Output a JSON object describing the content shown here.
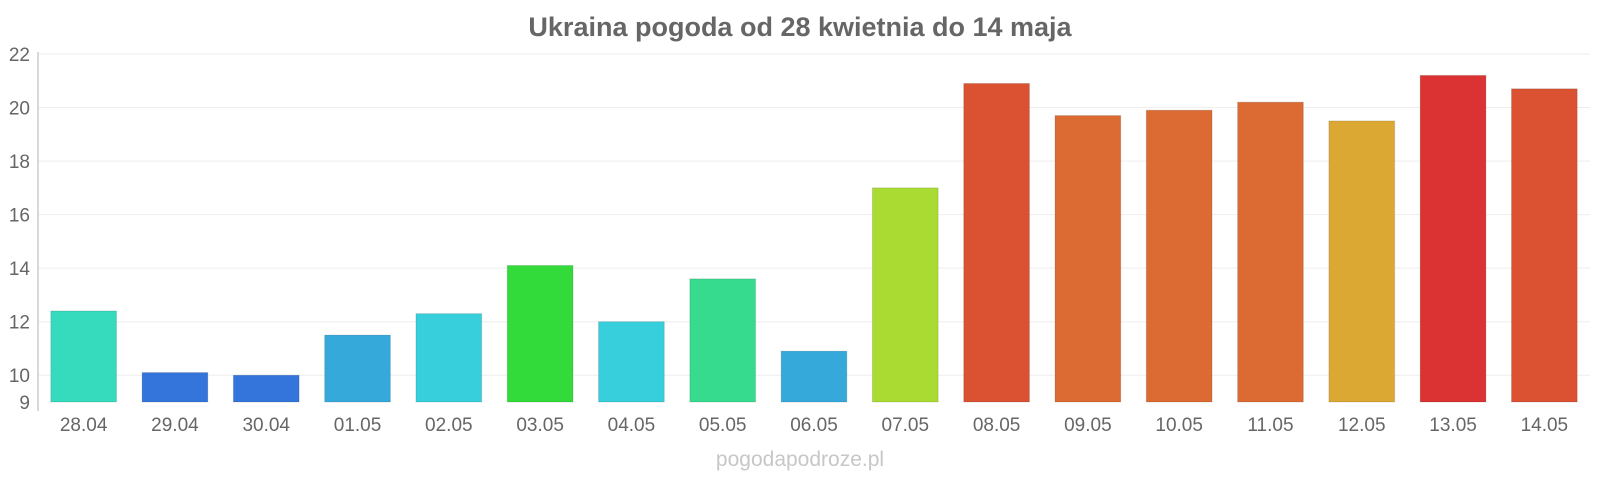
{
  "chart_data": {
    "type": "bar",
    "title": "Ukraina pogoda od 28 kwietnia do 14 maja",
    "xlabel": "",
    "ylabel": "",
    "ylim": [
      9,
      22
    ],
    "y_ticks": [
      "9",
      "10",
      "12",
      "14",
      "16",
      "18",
      "20",
      "22"
    ],
    "grid": true,
    "legend": "none",
    "categories": [
      "28.04",
      "29.04",
      "30.04",
      "01.05",
      "02.05",
      "03.05",
      "04.05",
      "05.05",
      "06.05",
      "07.05",
      "08.05",
      "09.05",
      "10.05",
      "11.05",
      "12.05",
      "13.05",
      "14.05"
    ],
    "values": [
      12.4,
      10.1,
      10.0,
      11.5,
      12.3,
      14.1,
      12.0,
      13.6,
      10.9,
      17.0,
      20.9,
      19.7,
      19.9,
      20.2,
      19.5,
      21.2,
      20.7
    ],
    "colors": [
      "#36dbbe",
      "#3375db",
      "#3375db",
      "#36a9db",
      "#36cfdb",
      "#33db3a",
      "#36cfdb",
      "#36db8e",
      "#36a9db",
      "#aadb33",
      "#db5233",
      "#db6b33",
      "#db6b33",
      "#db6b33",
      "#dba933",
      "#db3333",
      "#db5233"
    ]
  },
  "watermark": "pogodapodroze.pl"
}
